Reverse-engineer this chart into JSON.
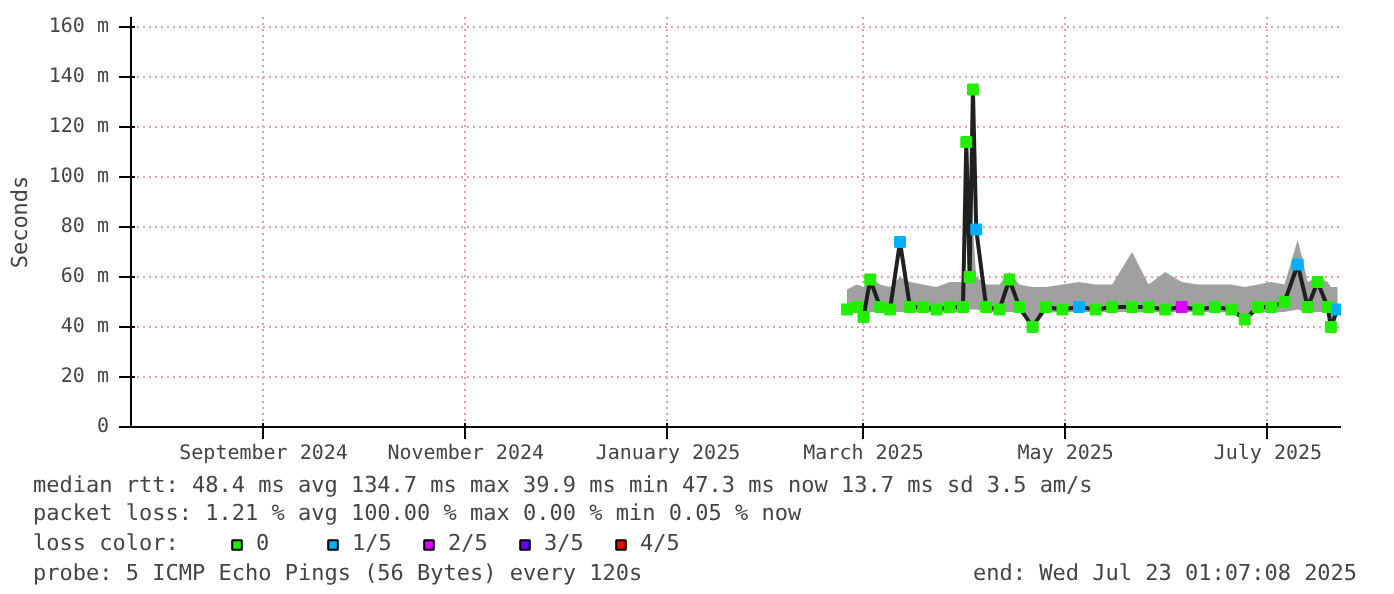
{
  "chart_data": {
    "type": "line",
    "ylabel": "Seconds",
    "legend_title": "loss color:",
    "x": [
      "2025-02-24",
      "2025-02-27",
      "2025-03-01",
      "2025-03-03",
      "2025-03-06",
      "2025-03-09",
      "2025-03-12",
      "2025-03-15",
      "2025-03-19",
      "2025-03-23",
      "2025-03-27",
      "2025-03-31",
      "2025-04-01",
      "2025-04-02",
      "2025-04-03",
      "2025-04-04",
      "2025-04-07",
      "2025-04-11",
      "2025-04-14",
      "2025-04-17",
      "2025-04-21",
      "2025-04-25",
      "2025-04-30",
      "2025-05-05",
      "2025-05-10",
      "2025-05-15",
      "2025-05-21",
      "2025-05-26",
      "2025-05-31",
      "2025-06-05",
      "2025-06-10",
      "2025-06-15",
      "2025-06-20",
      "2025-06-24",
      "2025-06-28",
      "2025-07-02",
      "2025-07-06",
      "2025-07-10",
      "2025-07-13",
      "2025-07-16",
      "2025-07-19",
      "2025-07-20",
      "2025-07-22"
    ],
    "series": [
      {
        "color": "#202020",
        "marker": "none",
        "values": [
          47,
          48,
          44,
          59,
          48,
          47,
          74,
          48,
          48,
          47,
          48,
          48,
          114,
          60,
          135,
          79,
          48,
          47,
          59,
          48,
          40,
          48,
          47,
          48,
          47,
          48,
          48,
          48,
          47,
          48,
          47,
          48,
          47,
          43,
          48,
          48,
          50,
          65,
          48,
          58,
          48,
          40,
          47
        ],
        "lower": [
          46,
          46,
          42,
          46,
          46,
          46,
          46,
          46,
          46,
          46,
          46,
          46,
          47,
          47,
          47,
          47,
          46,
          46,
          46,
          46,
          40,
          46,
          46,
          46,
          46,
          46,
          46,
          46,
          46,
          46,
          46,
          46,
          46,
          43,
          46,
          46,
          46,
          47,
          46,
          46,
          46,
          40,
          46
        ],
        "upper": [
          55,
          57,
          56,
          60,
          57,
          56,
          60,
          58,
          57,
          56,
          58,
          58,
          60,
          58,
          80,
          60,
          57,
          57,
          62,
          57,
          56,
          56,
          57,
          58,
          57,
          57,
          70,
          57,
          62,
          58,
          57,
          57,
          57,
          56,
          57,
          58,
          57,
          75,
          58,
          60,
          58,
          56,
          56
        ]
      },
      {
        "type": "scatter",
        "name": "0",
        "color": "#22ee00",
        "values": [
          47,
          48,
          44,
          59,
          48,
          47,
          null,
          48,
          48,
          47,
          48,
          48,
          114,
          60,
          135,
          null,
          48,
          47,
          59,
          48,
          40,
          48,
          47,
          null,
          47,
          48,
          48,
          48,
          47,
          null,
          47,
          48,
          47,
          43,
          48,
          48,
          50,
          null,
          48,
          58,
          48,
          40,
          null
        ]
      },
      {
        "type": "scatter",
        "name": "1/5",
        "color": "#00b0ff",
        "values": [
          null,
          null,
          null,
          null,
          null,
          null,
          74,
          null,
          null,
          null,
          null,
          null,
          null,
          null,
          null,
          79,
          null,
          null,
          null,
          null,
          null,
          null,
          null,
          48,
          null,
          null,
          null,
          null,
          null,
          null,
          null,
          null,
          null,
          null,
          null,
          null,
          null,
          65,
          null,
          null,
          null,
          null,
          47
        ]
      },
      {
        "type": "scatter",
        "name": "2/5",
        "color": "#dd00ff",
        "values": [
          null,
          null,
          null,
          null,
          null,
          null,
          null,
          null,
          null,
          null,
          null,
          null,
          null,
          null,
          null,
          null,
          null,
          null,
          null,
          null,
          null,
          null,
          null,
          null,
          null,
          null,
          null,
          null,
          null,
          48,
          null,
          null,
          null,
          null,
          null,
          null,
          null,
          null,
          null,
          null,
          null,
          null,
          null
        ]
      },
      {
        "type": "scatter",
        "name": "3/5",
        "color": "#6600ff",
        "values": [
          null,
          null,
          null,
          null,
          null,
          null,
          null,
          null,
          null,
          null,
          null,
          null,
          null,
          null,
          null,
          null,
          null,
          null,
          null,
          null,
          null,
          null,
          null,
          null,
          null,
          null,
          null,
          null,
          null,
          null,
          null,
          null,
          null,
          null,
          null,
          null,
          null,
          null,
          null,
          null,
          null,
          null,
          null
        ]
      },
      {
        "type": "scatter",
        "name": "4/5",
        "color": "#ff0000",
        "values": [
          null,
          null,
          null,
          null,
          null,
          null,
          null,
          null,
          null,
          null,
          null,
          null,
          null,
          null,
          null,
          null,
          null,
          null,
          null,
          null,
          null,
          null,
          null,
          null,
          null,
          null,
          null,
          null,
          null,
          null,
          null,
          null,
          null,
          null,
          null,
          null,
          null,
          null,
          null,
          null,
          null,
          null,
          null
        ]
      }
    ],
    "marker": "square",
    "grid": true,
    "legend": "bottom",
    "xlim": [
      "2024-07-23",
      "2025-07-23T01:07"
    ],
    "xticks": [
      {
        "value": "2024-09-01",
        "label": "September 2024"
      },
      {
        "value": "2024-11-01",
        "label": "November 2024"
      },
      {
        "value": "2025-01-01",
        "label": "January 2025"
      },
      {
        "value": "2025-03-01",
        "label": "March 2025"
      },
      {
        "value": "2025-05-01",
        "label": "May 2025"
      },
      {
        "value": "2025-07-01",
        "label": "July 2025"
      }
    ],
    "ylim": [
      0,
      164
    ],
    "yticks": [
      0,
      {
        "value": 20,
        "label": "20 m"
      },
      {
        "value": 40,
        "label": "40 m"
      },
      {
        "value": 60,
        "label": "60 m"
      },
      {
        "value": 80,
        "label": "80 m"
      },
      {
        "value": 100,
        "label": "100 m"
      },
      {
        "value": 120,
        "label": "120 m"
      },
      {
        "value": 140,
        "label": "140 m"
      },
      {
        "value": 160,
        "label": "160 m"
      }
    ],
    "annotations": [
      "median rtt:  48.4 ms avg  134.7 ms max  39.9 ms min  47.3 ms now  13.7 ms sd  3.5   am/s",
      "packet loss: 1.21 % avg  100.00 % max  0.00 % min  0.05 % now",
      "probe:       5 ICMP Echo Pings (56 Bytes) every 120s",
      "end: Wed Jul 23 01:07:08 2025"
    ]
  }
}
